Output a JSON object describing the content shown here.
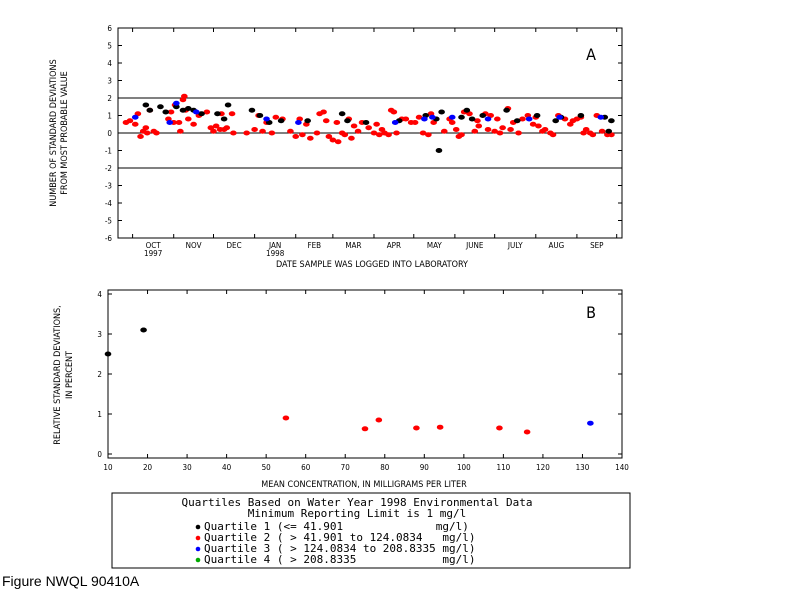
{
  "figure_id": "Figure NWQL 90410A",
  "chart_data": [
    {
      "type": "scatter",
      "panel": "A",
      "xlabel": "DATE SAMPLE WAS LOGGED INTO LABORATORY",
      "ylabel": [
        "NUMBER OF STANDARD DEVIATIONS",
        "FROM MOST PROBABLE VALUE"
      ],
      "ylim": [
        -6,
        6
      ],
      "yticks": [
        "6",
        "5",
        "4",
        "3",
        "2",
        "1",
        "0",
        "-1",
        "-2",
        "-3",
        "-4",
        "-5",
        "-6"
      ],
      "reference_lines": [
        2,
        0,
        -2
      ],
      "xtick_labels": [
        {
          "label": "OCT",
          "sub": "1997"
        },
        {
          "label": "NOV",
          "sub": ""
        },
        {
          "label": "DEC",
          "sub": ""
        },
        {
          "label": "JAN",
          "sub": "1998"
        },
        {
          "label": "FEB",
          "sub": ""
        },
        {
          "label": "MAR",
          "sub": ""
        },
        {
          "label": "APR",
          "sub": ""
        },
        {
          "label": "MAY",
          "sub": ""
        },
        {
          "label": "JUNE",
          "sub": ""
        },
        {
          "label": "JULY",
          "sub": ""
        },
        {
          "label": "AUG",
          "sub": ""
        },
        {
          "label": "SEP",
          "sub": ""
        }
      ],
      "xlim": [
        "1997-09-20",
        "1998-10-05"
      ],
      "series": [
        {
          "quartile": 1,
          "color": "#000000",
          "points": [
            [
              "1997-10-11",
              1.6
            ],
            [
              "1997-10-14",
              1.3
            ],
            [
              "1997-10-22",
              1.5
            ],
            [
              "1997-10-26",
              1.2
            ],
            [
              "1997-11-03",
              1.5
            ],
            [
              "1997-11-08",
              1.3
            ],
            [
              "1997-11-12",
              1.4
            ],
            [
              "1997-11-16",
              1.3
            ],
            [
              "1997-11-22",
              1.1
            ],
            [
              "1997-12-04",
              1.1
            ],
            [
              "1997-12-09",
              0.8
            ],
            [
              "1997-12-12",
              1.6
            ],
            [
              "1997-12-30",
              1.3
            ],
            [
              "1998-01-05",
              1.0
            ],
            [
              "1998-01-12",
              0.6
            ],
            [
              "1998-01-21",
              0.7
            ],
            [
              "1998-02-10",
              0.7
            ],
            [
              "1998-03-08",
              1.1
            ],
            [
              "1998-03-12",
              0.7
            ],
            [
              "1998-03-26",
              0.6
            ],
            [
              "1998-04-20",
              0.7
            ],
            [
              "1998-05-10",
              1.0
            ],
            [
              "1998-05-18",
              0.8
            ],
            [
              "1998-05-22",
              1.2
            ],
            [
              "1998-05-20",
              -1.0
            ],
            [
              "1998-06-06",
              0.9
            ],
            [
              "1998-06-10",
              1.3
            ],
            [
              "1998-06-14",
              0.8
            ],
            [
              "1998-06-22",
              1.0
            ],
            [
              "1998-07-10",
              1.3
            ],
            [
              "1998-07-18",
              0.7
            ],
            [
              "1998-08-02",
              1.0
            ],
            [
              "1998-08-16",
              0.7
            ],
            [
              "1998-08-20",
              0.9
            ],
            [
              "1998-09-04",
              1.0
            ],
            [
              "1998-09-22",
              0.9
            ],
            [
              "1998-09-25",
              0.1
            ],
            [
              "1998-09-27",
              0.7
            ]
          ]
        },
        {
          "quartile": 2,
          "color": "#ff0000",
          "points": [
            [
              "1997-09-26",
              0.6
            ],
            [
              "1997-09-29",
              0.7
            ],
            [
              "1997-10-03",
              0.5
            ],
            [
              "1997-10-05",
              1.1
            ],
            [
              "1997-10-07",
              -0.2
            ],
            [
              "1997-10-09",
              0.1
            ],
            [
              "1997-10-11",
              0.3
            ],
            [
              "1997-10-12",
              0.0
            ],
            [
              "1997-10-14",
              1.3
            ],
            [
              "1997-10-17",
              0.1
            ],
            [
              "1997-10-19",
              0.0
            ],
            [
              "1997-10-28",
              0.8
            ],
            [
              "1997-10-30",
              1.2
            ],
            [
              "1997-11-01",
              0.6
            ],
            [
              "1997-11-02",
              1.6
            ],
            [
              "1997-11-05",
              0.6
            ],
            [
              "1997-11-06",
              0.1
            ],
            [
              "1997-11-08",
              1.9
            ],
            [
              "1997-11-09",
              2.1
            ],
            [
              "1997-11-10",
              1.3
            ],
            [
              "1997-11-12",
              0.8
            ],
            [
              "1997-11-16",
              0.5
            ],
            [
              "1997-11-20",
              1.0
            ],
            [
              "1997-11-26",
              1.2
            ],
            [
              "1997-11-29",
              0.3
            ],
            [
              "1997-12-01",
              0.1
            ],
            [
              "1997-12-03",
              0.4
            ],
            [
              "1997-12-06",
              0.2
            ],
            [
              "1997-12-07",
              1.1
            ],
            [
              "1997-12-09",
              0.2
            ],
            [
              "1997-12-11",
              0.3
            ],
            [
              "1997-12-15",
              1.1
            ],
            [
              "1997-12-16",
              0.0
            ],
            [
              "1997-12-26",
              0.0
            ],
            [
              "1998-01-01",
              0.2
            ],
            [
              "1998-01-04",
              1.0
            ],
            [
              "1998-01-07",
              0.1
            ],
            [
              "1998-01-10",
              0.6
            ],
            [
              "1998-01-14",
              0.0
            ],
            [
              "1998-01-17",
              0.9
            ],
            [
              "1998-01-22",
              0.8
            ],
            [
              "1998-01-28",
              0.1
            ],
            [
              "1998-02-01",
              -0.2
            ],
            [
              "1998-02-04",
              0.8
            ],
            [
              "1998-02-06",
              -0.1
            ],
            [
              "1998-02-09",
              0.5
            ],
            [
              "1998-02-12",
              -0.3
            ],
            [
              "1998-02-17",
              0.0
            ],
            [
              "1998-02-19",
              1.1
            ],
            [
              "1998-02-22",
              1.2
            ],
            [
              "1998-02-24",
              0.7
            ],
            [
              "1998-02-26",
              -0.2
            ],
            [
              "1998-03-01",
              -0.4
            ],
            [
              "1998-03-04",
              0.6
            ],
            [
              "1998-03-05",
              -0.5
            ],
            [
              "1998-03-08",
              0.0
            ],
            [
              "1998-03-10",
              -0.1
            ],
            [
              "1998-03-13",
              0.8
            ],
            [
              "1998-03-15",
              -0.3
            ],
            [
              "1998-03-17",
              0.4
            ],
            [
              "1998-03-20",
              0.1
            ],
            [
              "1998-03-23",
              0.6
            ],
            [
              "1998-03-28",
              0.3
            ],
            [
              "1998-04-01",
              0.0
            ],
            [
              "1998-04-03",
              0.5
            ],
            [
              "1998-04-05",
              -0.1
            ],
            [
              "1998-04-07",
              0.2
            ],
            [
              "1998-04-09",
              0.0
            ],
            [
              "1998-04-12",
              -0.1
            ],
            [
              "1998-04-14",
              1.3
            ],
            [
              "1998-04-16",
              1.2
            ],
            [
              "1998-04-18",
              0.0
            ],
            [
              "1998-04-22",
              0.8
            ],
            [
              "1998-04-25",
              0.8
            ],
            [
              "1998-04-29",
              0.6
            ],
            [
              "1998-05-02",
              0.6
            ],
            [
              "1998-05-05",
              0.9
            ],
            [
              "1998-05-08",
              0.0
            ],
            [
              "1998-05-12",
              -0.1
            ],
            [
              "1998-05-14",
              1.1
            ],
            [
              "1998-05-16",
              0.6
            ],
            [
              "1998-05-24",
              0.1
            ],
            [
              "1998-05-28",
              0.8
            ],
            [
              "1998-05-30",
              0.6
            ],
            [
              "1998-06-02",
              0.2
            ],
            [
              "1998-06-04",
              -0.2
            ],
            [
              "1998-06-06",
              -0.1
            ],
            [
              "1998-06-08",
              1.2
            ],
            [
              "1998-06-12",
              1.1
            ],
            [
              "1998-06-16",
              0.1
            ],
            [
              "1998-06-18",
              0.7
            ],
            [
              "1998-06-19",
              0.4
            ],
            [
              "1998-06-24",
              1.1
            ],
            [
              "1998-06-26",
              0.2
            ],
            [
              "1998-06-28",
              1.0
            ],
            [
              "1998-07-01",
              0.1
            ],
            [
              "1998-07-03",
              0.8
            ],
            [
              "1998-07-05",
              0.0
            ],
            [
              "1998-07-07",
              0.3
            ],
            [
              "1998-07-11",
              1.4
            ],
            [
              "1998-07-13",
              0.2
            ],
            [
              "1998-07-15",
              0.6
            ],
            [
              "1998-07-19",
              0.0
            ],
            [
              "1998-07-22",
              0.8
            ],
            [
              "1998-07-26",
              1.0
            ],
            [
              "1998-07-30",
              0.5
            ],
            [
              "1998-08-01",
              0.9
            ],
            [
              "1998-08-03",
              0.4
            ],
            [
              "1998-08-06",
              0.1
            ],
            [
              "1998-08-08",
              0.2
            ],
            [
              "1998-08-12",
              0.0
            ],
            [
              "1998-08-14",
              -0.1
            ],
            [
              "1998-08-18",
              1.0
            ],
            [
              "1998-08-23",
              0.8
            ],
            [
              "1998-08-27",
              0.5
            ],
            [
              "1998-08-29",
              0.7
            ],
            [
              "1998-09-01",
              0.8
            ],
            [
              "1998-09-04",
              0.9
            ],
            [
              "1998-09-06",
              0.0
            ],
            [
              "1998-09-08",
              0.2
            ],
            [
              "1998-09-11",
              0.0
            ],
            [
              "1998-09-13",
              -0.1
            ],
            [
              "1998-09-16",
              1.0
            ],
            [
              "1998-09-20",
              0.1
            ],
            [
              "1998-09-24",
              -0.1
            ],
            [
              "1998-09-27",
              -0.1
            ]
          ]
        },
        {
          "quartile": 3,
          "color": "#0000ff",
          "points": [
            [
              "1997-10-03",
              0.9
            ],
            [
              "1997-10-29",
              0.6
            ],
            [
              "1997-11-03",
              1.7
            ],
            [
              "1997-11-18",
              1.2
            ],
            [
              "1998-01-10",
              0.8
            ],
            [
              "1998-02-03",
              0.6
            ],
            [
              "1998-04-17",
              0.6
            ],
            [
              "1998-05-09",
              0.8
            ],
            [
              "1998-05-15",
              0.9
            ],
            [
              "1998-05-30",
              0.9
            ],
            [
              "1998-06-26",
              0.8
            ],
            [
              "1998-07-27",
              0.8
            ],
            [
              "1998-08-19",
              0.9
            ],
            [
              "1998-09-19",
              0.9
            ]
          ]
        }
      ]
    },
    {
      "type": "scatter",
      "panel": "B",
      "xlabel": "MEAN CONCENTRATION, IN MILLIGRAMS PER LITER",
      "ylabel": [
        "RELATIVE STANDARD DEVIATIONS,",
        "IN PERCENT"
      ],
      "xlim": [
        10,
        140
      ],
      "ylim": [
        0,
        4
      ],
      "xticks": [
        "10",
        "20",
        "30",
        "40",
        "50",
        "60",
        "70",
        "80",
        "90",
        "100",
        "110",
        "120",
        "130",
        "140"
      ],
      "yticks": [
        "4",
        "3",
        "2",
        "1",
        "0"
      ],
      "series": [
        {
          "quartile": 1,
          "color": "#000000",
          "points": [
            [
              10,
              2.5
            ],
            [
              19,
              3.1
            ]
          ]
        },
        {
          "quartile": 2,
          "color": "#ff0000",
          "points": [
            [
              55,
              0.9
            ],
            [
              75,
              0.63
            ],
            [
              78.5,
              0.85
            ],
            [
              88,
              0.65
            ],
            [
              94,
              0.67
            ],
            [
              109,
              0.65
            ],
            [
              116,
              0.55
            ]
          ]
        },
        {
          "quartile": 3,
          "color": "#0000ff",
          "points": [
            [
              132,
              0.77
            ]
          ]
        }
      ]
    }
  ],
  "legend": {
    "title_line1": "Quartiles Based on Water Year 1998 Environmental Data",
    "title_line2": "Minimum Reporting Limit is 1 mg/l",
    "items": [
      {
        "text": "Quartile 1 (<= 41.901              mg/l)",
        "color": "#000000"
      },
      {
        "text": "Quartile 2 ( > 41.901 to 124.0834   mg/l)",
        "color": "#ff0000"
      },
      {
        "text": "Quartile 3 ( > 124.0834 to 208.8335 mg/l)",
        "color": "#0000ff"
      },
      {
        "text": "Quartile 4 ( > 208.8335             mg/l)",
        "color": "#00aa00"
      }
    ]
  }
}
